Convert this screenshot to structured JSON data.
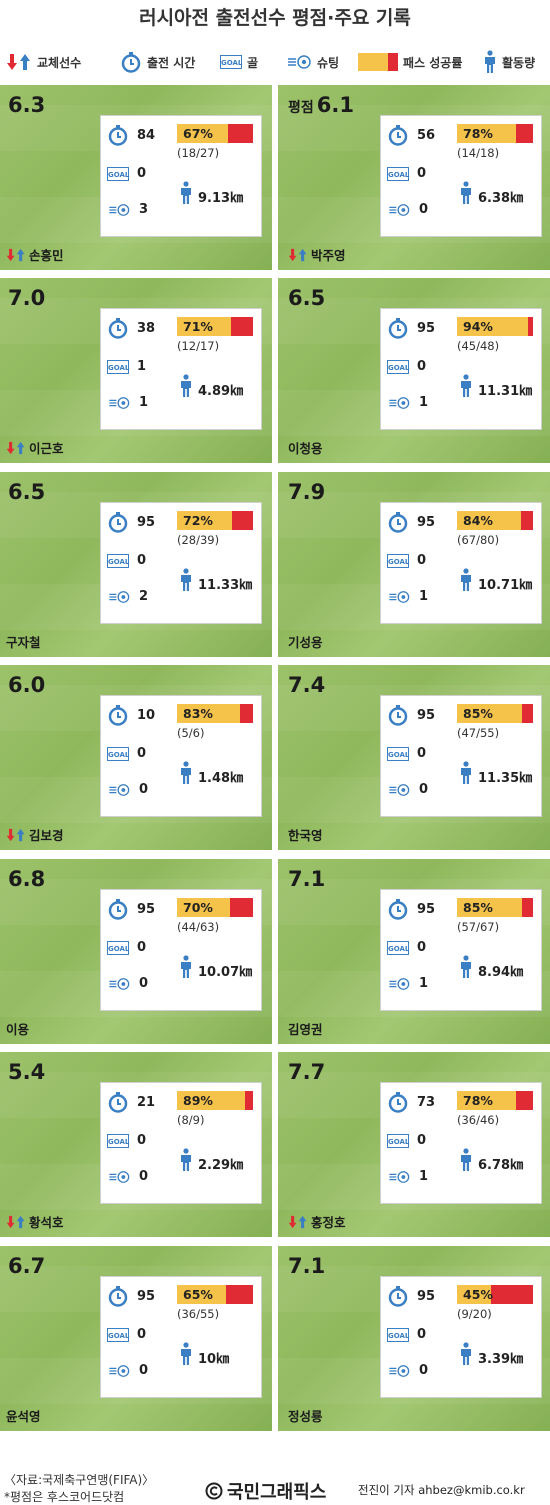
{
  "title": "러시아전 출전선수 평점·주요 기록",
  "legend": {
    "sub": "교체선수",
    "time": "출전 시간",
    "goal": "골",
    "goal_icon": "GOAL",
    "shoot": "슈팅",
    "pass": "패스 성공률",
    "distance": "활동량"
  },
  "rating_label": "평점",
  "players": [
    {
      "name": "손흥민",
      "rating": "6.3",
      "minutes": "84",
      "pass_pct": "67%",
      "pass_value": 67,
      "pass_frac": "(18/27)",
      "goals": "0",
      "shots": "3",
      "distance": "9.13㎞",
      "sub": true,
      "rating_label": false
    },
    {
      "name": "박주영",
      "rating": "6.1",
      "minutes": "56",
      "pass_pct": "78%",
      "pass_value": 78,
      "pass_frac": "(14/18)",
      "goals": "0",
      "shots": "0",
      "distance": "6.38㎞",
      "sub": true,
      "rating_label": true
    },
    {
      "name": "이근호",
      "rating": "7.0",
      "minutes": "38",
      "pass_pct": "71%",
      "pass_value": 71,
      "pass_frac": "(12/17)",
      "goals": "1",
      "shots": "1",
      "distance": "4.89㎞",
      "sub": true,
      "rating_label": false
    },
    {
      "name": "이청용",
      "rating": "6.5",
      "minutes": "95",
      "pass_pct": "94%",
      "pass_value": 94,
      "pass_frac": "(45/48)",
      "goals": "0",
      "shots": "1",
      "distance": "11.31㎞",
      "sub": false,
      "rating_label": false
    },
    {
      "name": "구자철",
      "rating": "6.5",
      "minutes": "95",
      "pass_pct": "72%",
      "pass_value": 72,
      "pass_frac": "(28/39)",
      "goals": "0",
      "shots": "2",
      "distance": "11.33㎞",
      "sub": false,
      "rating_label": false
    },
    {
      "name": "기성용",
      "rating": "7.9",
      "minutes": "95",
      "pass_pct": "84%",
      "pass_value": 84,
      "pass_frac": "(67/80)",
      "goals": "0",
      "shots": "1",
      "distance": "10.71㎞",
      "sub": false,
      "rating_label": false
    },
    {
      "name": "김보경",
      "rating": "6.0",
      "minutes": "10",
      "pass_pct": "83%",
      "pass_value": 83,
      "pass_frac": "(5/6)",
      "goals": "0",
      "shots": "0",
      "distance": "1.48㎞",
      "sub": true,
      "rating_label": false
    },
    {
      "name": "한국영",
      "rating": "7.4",
      "minutes": "95",
      "pass_pct": "85%",
      "pass_value": 85,
      "pass_frac": "(47/55)",
      "goals": "0",
      "shots": "0",
      "distance": "11.35㎞",
      "sub": false,
      "rating_label": false
    },
    {
      "name": "이용",
      "rating": "6.8",
      "minutes": "95",
      "pass_pct": "70%",
      "pass_value": 70,
      "pass_frac": "(44/63)",
      "goals": "0",
      "shots": "0",
      "distance": "10.07㎞",
      "sub": false,
      "rating_label": false
    },
    {
      "name": "김영권",
      "rating": "7.1",
      "minutes": "95",
      "pass_pct": "85%",
      "pass_value": 85,
      "pass_frac": "(57/67)",
      "goals": "0",
      "shots": "1",
      "distance": "8.94㎞",
      "sub": false,
      "rating_label": false
    },
    {
      "name": "황석호",
      "rating": "5.4",
      "minutes": "21",
      "pass_pct": "89%",
      "pass_value": 89,
      "pass_frac": "(8/9)",
      "goals": "0",
      "shots": "0",
      "distance": "2.29㎞",
      "sub": true,
      "rating_label": false
    },
    {
      "name": "홍정호",
      "rating": "7.7",
      "minutes": "73",
      "pass_pct": "78%",
      "pass_value": 78,
      "pass_frac": "(36/46)",
      "goals": "0",
      "shots": "1",
      "distance": "6.78㎞",
      "sub": true,
      "rating_label": false
    },
    {
      "name": "윤석영",
      "rating": "6.7",
      "minutes": "95",
      "pass_pct": "65%",
      "pass_value": 65,
      "pass_frac": "(36/55)",
      "goals": "0",
      "shots": "0",
      "distance": "10㎞",
      "sub": false,
      "rating_label": false
    },
    {
      "name": "정성룡",
      "rating": "7.1",
      "minutes": "95",
      "pass_pct": "45%",
      "pass_value": 45,
      "pass_frac": "(9/20)",
      "goals": "0",
      "shots": "0",
      "distance": "3.39㎞",
      "sub": false,
      "rating_label": false
    }
  ],
  "footer": {
    "source": "〈자료:국제축구연맹(FIFA)〉",
    "note": "*평점은 후스코어드닷컴",
    "brand": "국민그래픽스",
    "reporter": "전진이 기자 ahbez@kmib.co.kr"
  },
  "colors": {
    "pass_success": "#f5c24a",
    "pass_fail": "#e02a34",
    "icon_blue": "#3a7fc4",
    "sub_out": "#e02a34",
    "sub_in": "#3a7fc4",
    "pitch": "#9cc26a"
  }
}
